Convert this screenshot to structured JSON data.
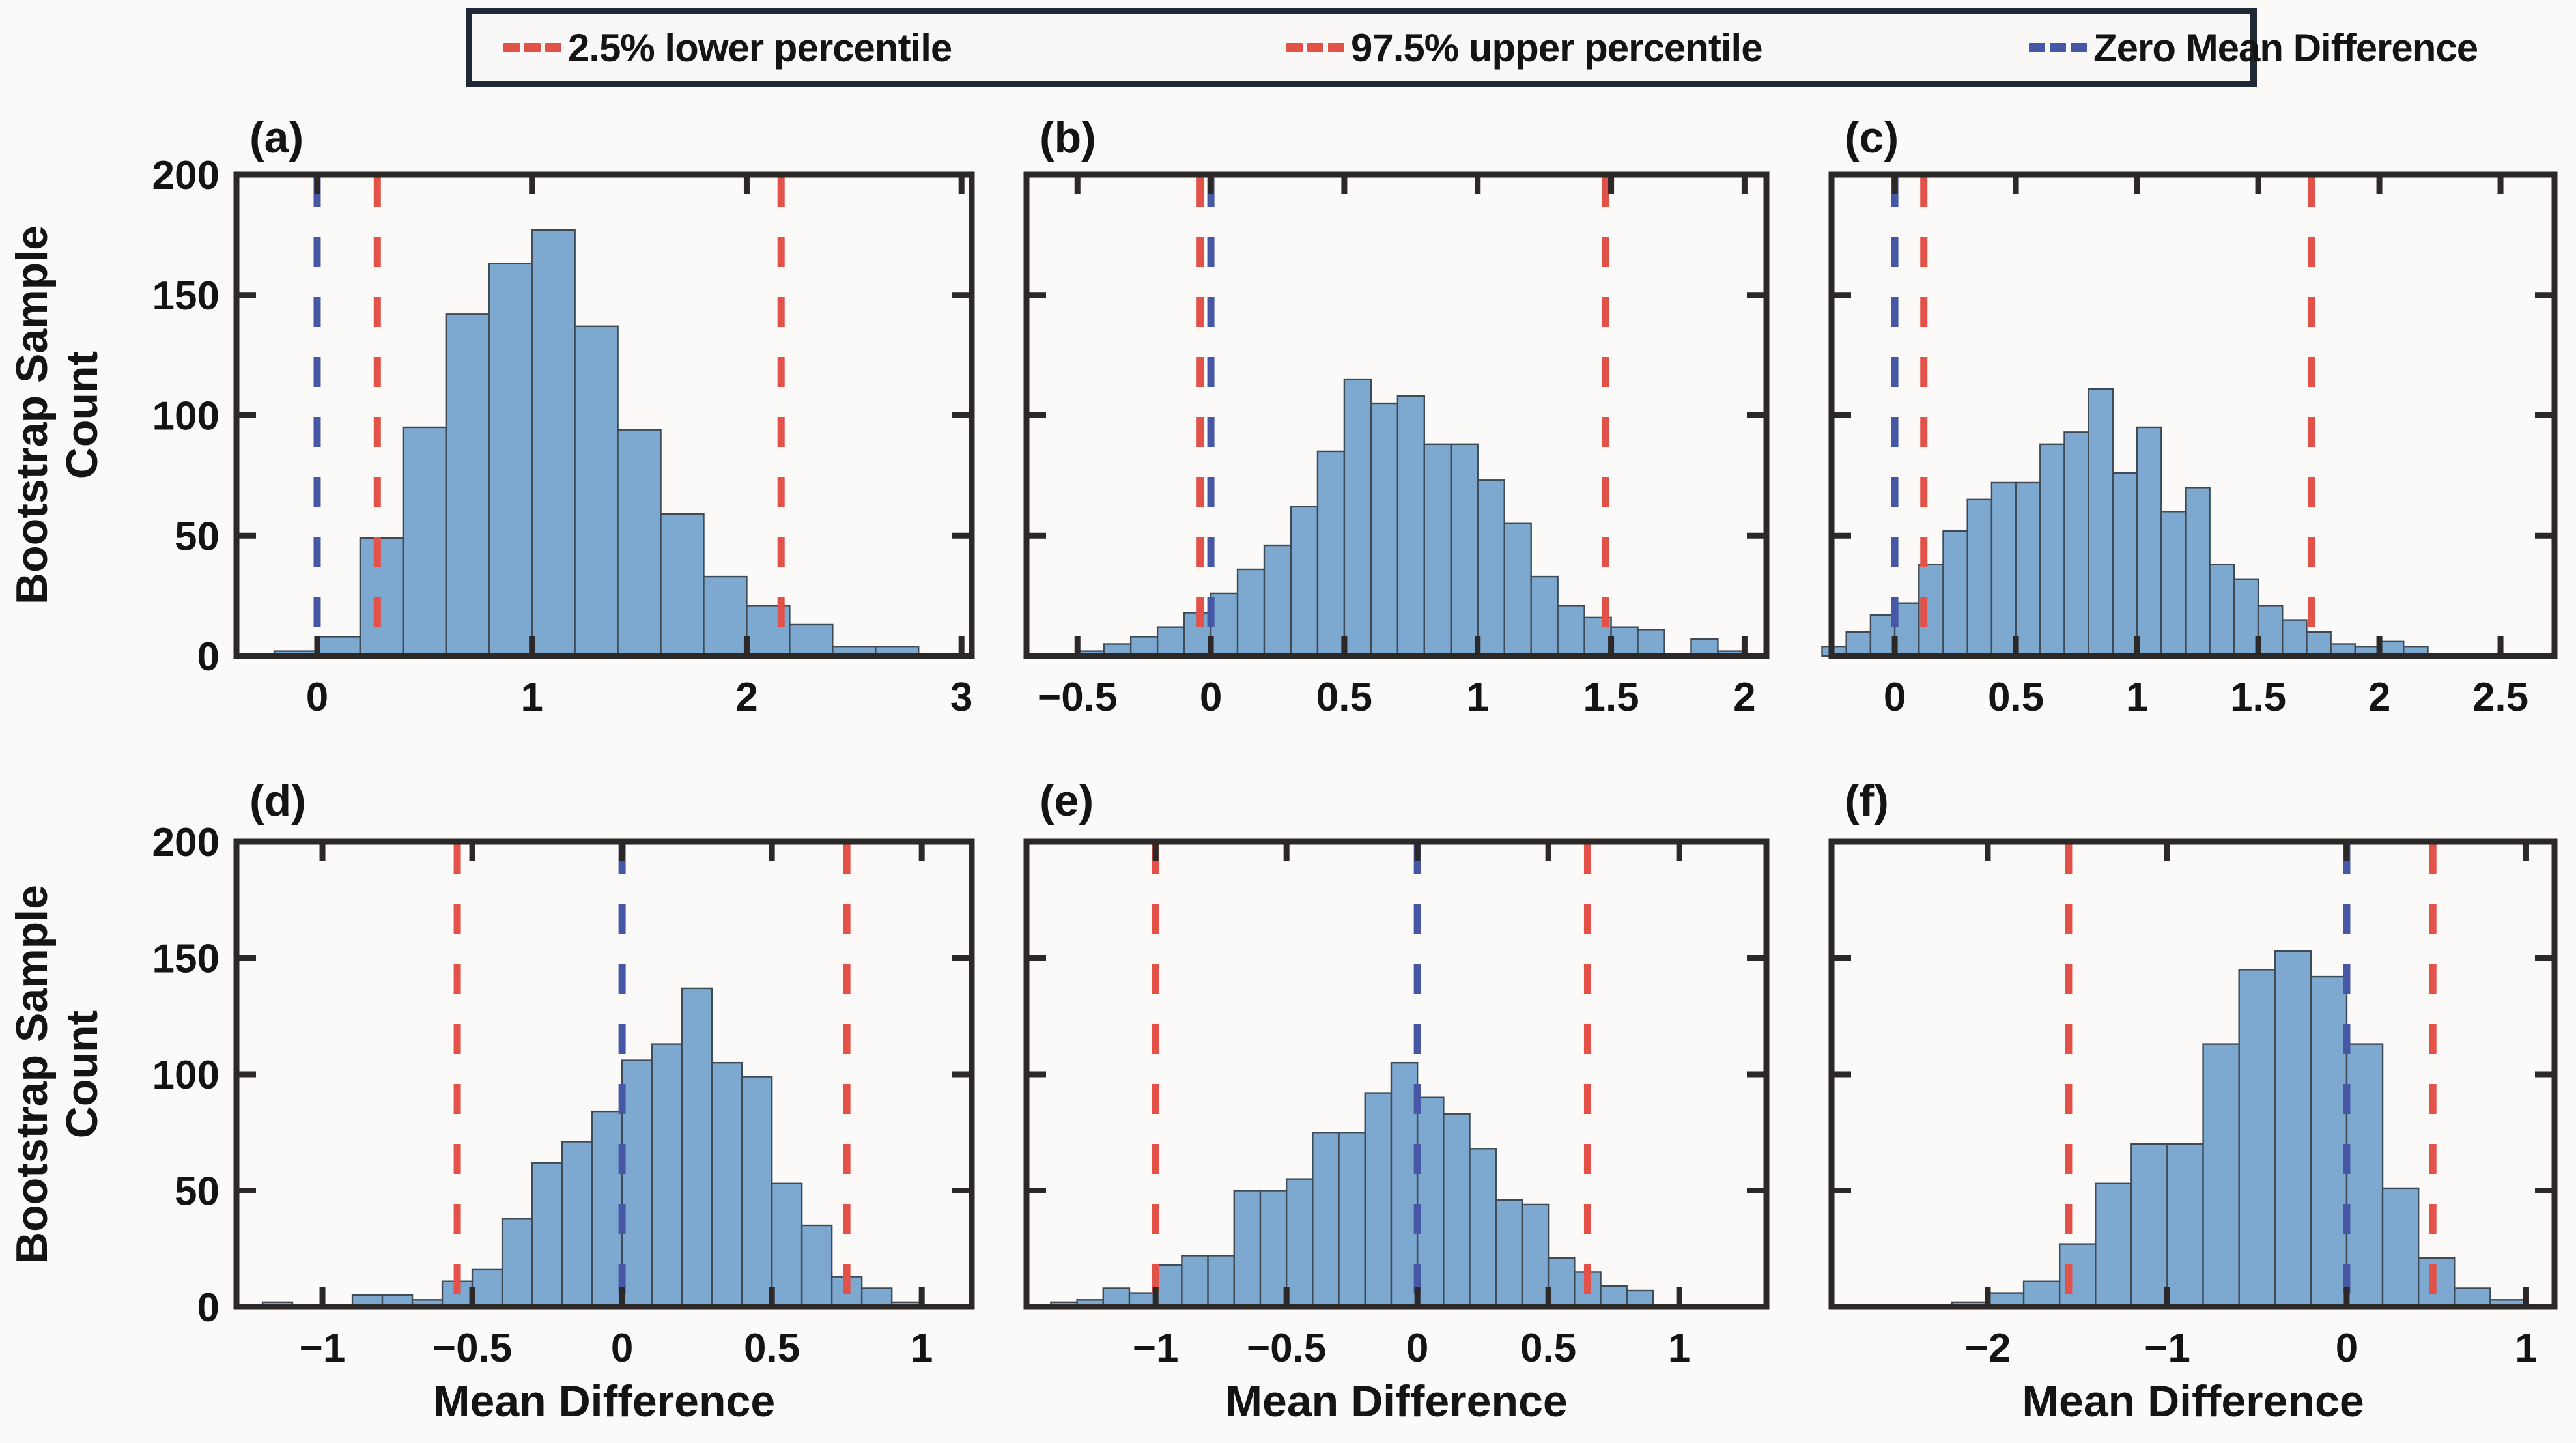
{
  "legend": {
    "items": [
      {
        "label": "2.5% lower percentile",
        "color_key": "percentile",
        "style": "dashed"
      },
      {
        "label": "97.5% upper percentile",
        "color_key": "percentile",
        "style": "dashed"
      },
      {
        "label": "Zero Mean Difference",
        "color_key": "zero",
        "style": "dashed"
      }
    ]
  },
  "ylabel": {
    "line1": "Bootstrap Sample",
    "line2": "Count"
  },
  "xlabel": "Mean Difference",
  "colors": {
    "bar_fill": "#7DA9D1",
    "bar_edge": "#3F4A55",
    "percentile": "#E25248",
    "zero": "#4557A5",
    "axis": "#2B2827",
    "text": "#161413",
    "legend_border": "#1F2835",
    "background": "#FBFAF8"
  },
  "chart_data": [
    {
      "panel": "(a)",
      "type": "bar",
      "subtype": "histogram",
      "xlim": [
        -0.376,
        3.048
      ],
      "ylim": [
        0,
        200
      ],
      "xtick_values": [
        0,
        1,
        2,
        3
      ],
      "xtick_labels": [
        "0",
        "1",
        "2",
        "3"
      ],
      "ytick_values": [
        0,
        50,
        100,
        150,
        200
      ],
      "ytick_labels": [
        "0",
        "50",
        "100",
        "150",
        "200"
      ],
      "show_ytick_labels": true,
      "bin_start": -0.2,
      "bin_width": 0.2,
      "counts": [
        2,
        8,
        49,
        95,
        142,
        163,
        177,
        137,
        94,
        59,
        33,
        21,
        13,
        4,
        4
      ],
      "lower_percentile": 0.28,
      "upper_percentile": 2.16,
      "zero_mean": 0
    },
    {
      "panel": "(b)",
      "type": "bar",
      "subtype": "histogram",
      "xlim": [
        -0.691,
        2.082
      ],
      "ylim": [
        0,
        200
      ],
      "xtick_values": [
        -0.5,
        0,
        0.5,
        1,
        1.5,
        2
      ],
      "xtick_labels": [
        "−0.5",
        "0",
        "0.5",
        "1",
        "1.5",
        "2"
      ],
      "ytick_values": [
        0,
        50,
        100,
        150,
        200
      ],
      "ytick_labels": [
        "0",
        "50",
        "100",
        "150",
        "200"
      ],
      "show_ytick_labels": false,
      "bin_start": -0.5,
      "bin_width": 0.1,
      "counts": [
        2,
        5,
        8,
        12,
        18,
        26,
        36,
        46,
        62,
        85,
        115,
        105,
        108,
        88,
        88,
        73,
        55,
        33,
        21,
        16,
        12,
        11,
        0,
        7,
        2
      ],
      "lower_percentile": -0.04,
      "upper_percentile": 1.48,
      "zero_mean": 0
    },
    {
      "panel": "(c)",
      "type": "bar",
      "subtype": "histogram",
      "xlim": [
        -0.261,
        2.723
      ],
      "ylim": [
        0,
        200
      ],
      "xtick_values": [
        0,
        0.5,
        1,
        1.5,
        2,
        2.5
      ],
      "xtick_labels": [
        "0",
        "0.5",
        "1",
        "1.5",
        "2",
        "2.5"
      ],
      "ytick_values": [
        0,
        50,
        100,
        150,
        200
      ],
      "ytick_labels": [
        "0",
        "50",
        "100",
        "150",
        "200"
      ],
      "show_ytick_labels": false,
      "bin_start": -0.3,
      "bin_width": 0.1,
      "counts": [
        4,
        10,
        17,
        22,
        38,
        52,
        65,
        72,
        72,
        88,
        93,
        111,
        76,
        95,
        60,
        70,
        38,
        32,
        21,
        15,
        10,
        5,
        4,
        6,
        4
      ],
      "lower_percentile": 0.12,
      "upper_percentile": 1.72,
      "zero_mean": 0
    },
    {
      "panel": "(d)",
      "type": "bar",
      "subtype": "histogram",
      "xlim": [
        -1.287,
        1.167
      ],
      "ylim": [
        0,
        200
      ],
      "xtick_values": [
        -1,
        -0.5,
        0,
        0.5,
        1
      ],
      "xtick_labels": [
        "−1",
        "−0.5",
        "0",
        "0.5",
        "1"
      ],
      "ytick_values": [
        0,
        50,
        100,
        150,
        200
      ],
      "ytick_labels": [
        "0",
        "50",
        "100",
        "150",
        "200"
      ],
      "show_ytick_labels": true,
      "bin_start": -1.2,
      "bin_width": 0.1,
      "counts": [
        2,
        0,
        0,
        5,
        5,
        3,
        11,
        16,
        38,
        62,
        71,
        84,
        106,
        113,
        137,
        105,
        99,
        53,
        35,
        13,
        8,
        2,
        1
      ],
      "lower_percentile": -0.55,
      "upper_percentile": 0.75,
      "zero_mean": 0
    },
    {
      "panel": "(e)",
      "type": "bar",
      "subtype": "histogram",
      "xlim": [
        -1.493,
        1.333
      ],
      "ylim": [
        0,
        200
      ],
      "xtick_values": [
        -1,
        -0.5,
        0,
        0.5,
        1
      ],
      "xtick_labels": [
        "−1",
        "−0.5",
        "0",
        "0.5",
        "1"
      ],
      "ytick_values": [
        0,
        50,
        100,
        150,
        200
      ],
      "ytick_labels": [
        "0",
        "50",
        "100",
        "150",
        "200"
      ],
      "show_ytick_labels": false,
      "bin_start": -1.4,
      "bin_width": 0.1,
      "counts": [
        2,
        3,
        8,
        6,
        18,
        22,
        22,
        50,
        50,
        55,
        75,
        75,
        92,
        105,
        90,
        83,
        68,
        46,
        44,
        21,
        15,
        9,
        7,
        1
      ],
      "lower_percentile": -1.0,
      "upper_percentile": 0.65,
      "zero_mean": 0
    },
    {
      "panel": "(f)",
      "type": "bar",
      "subtype": "histogram",
      "xlim": [
        -2.871,
        1.158
      ],
      "ylim": [
        0,
        200
      ],
      "xtick_values": [
        -2,
        -1,
        0,
        1
      ],
      "xtick_labels": [
        "−2",
        "−1",
        "0",
        "1"
      ],
      "ytick_values": [
        0,
        50,
        100,
        150,
        200
      ],
      "ytick_labels": [
        "0",
        "50",
        "100",
        "150",
        "200"
      ],
      "show_ytick_labels": false,
      "bin_start": -2.2,
      "bin_width": 0.2,
      "counts": [
        2,
        6,
        11,
        27,
        53,
        70,
        70,
        113,
        145,
        153,
        142,
        113,
        51,
        21,
        8,
        3
      ],
      "lower_percentile": -1.55,
      "upper_percentile": 0.48,
      "zero_mean": 0
    }
  ]
}
